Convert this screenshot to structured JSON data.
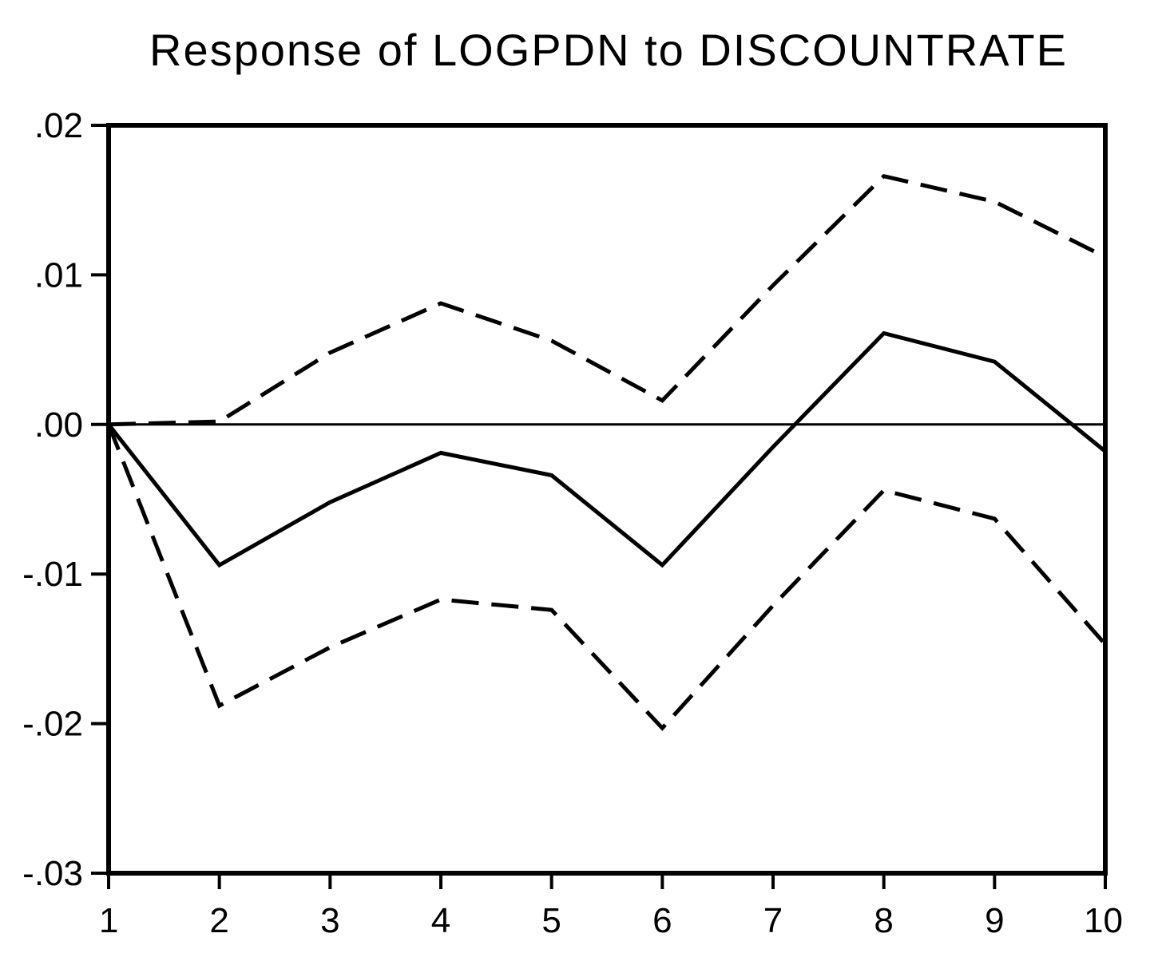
{
  "chart_data": {
    "type": "line",
    "title": "Response of LOGPDN to DISCOUNTRATE",
    "xlabel": "",
    "ylabel": "",
    "x": [
      1,
      2,
      3,
      4,
      5,
      6,
      7,
      8,
      9,
      10
    ],
    "x_tick_labels": [
      "1",
      "2",
      "3",
      "4",
      "5",
      "6",
      "7",
      "8",
      "9",
      "10"
    ],
    "ylim": [
      -0.03,
      0.02
    ],
    "y_ticks": [
      0.02,
      0.01,
      0.0,
      -0.01,
      -0.02,
      -0.03
    ],
    "y_tick_labels": [
      ".02",
      ".01",
      ".00",
      "-.01",
      "-.02",
      "-.03"
    ],
    "grid": false,
    "zero_line": true,
    "series": [
      {
        "role": "response",
        "style": "solid",
        "color": "#000000",
        "values": [
          0.0,
          -0.0094,
          -0.0052,
          -0.0019,
          -0.0034,
          -0.0094,
          -0.0015,
          0.0061,
          0.0042,
          -0.0018
        ]
      },
      {
        "role": "upper_band",
        "style": "dashed",
        "color": "#000000",
        "values": [
          0.0,
          0.0002,
          0.0048,
          0.0081,
          0.0056,
          0.0016,
          0.0093,
          0.0166,
          0.0149,
          0.0112
        ]
      },
      {
        "role": "lower_band",
        "style": "dashed",
        "color": "#000000",
        "values": [
          0.0,
          -0.0188,
          -0.0149,
          -0.0117,
          -0.0124,
          -0.0203,
          -0.0121,
          -0.0044,
          -0.0063,
          -0.0147
        ]
      }
    ]
  }
}
